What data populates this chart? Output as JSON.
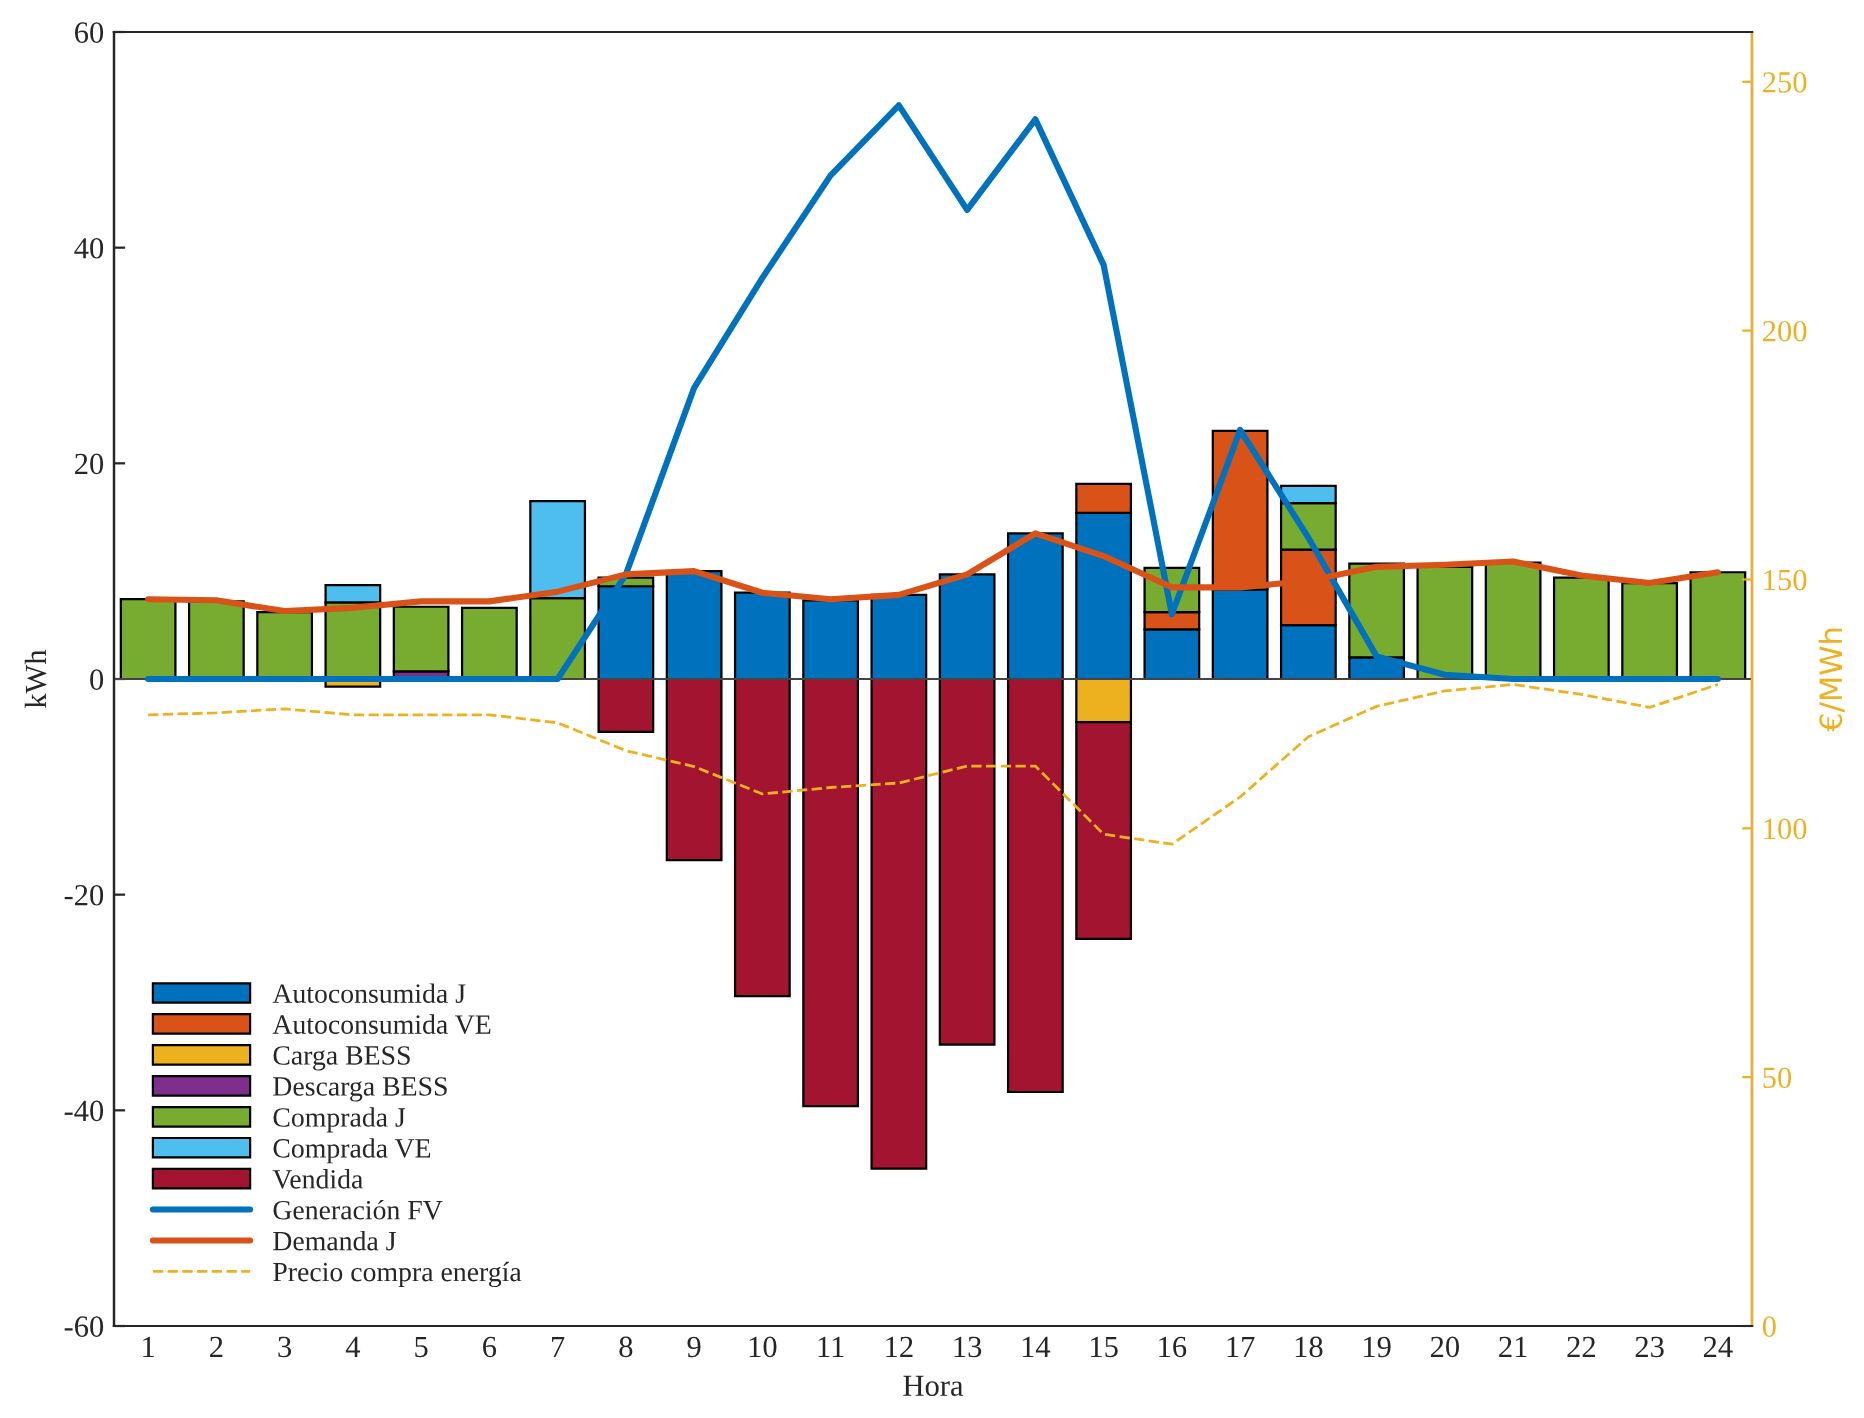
{
  "chart_data": {
    "type": "bar",
    "stacked": true,
    "xlabel": "Hora",
    "ylabel": "kWh",
    "y2label": "€/MWh",
    "x": [
      1,
      2,
      3,
      4,
      5,
      6,
      7,
      8,
      9,
      10,
      11,
      12,
      13,
      14,
      15,
      16,
      17,
      18,
      19,
      20,
      21,
      22,
      23,
      24
    ],
    "xlim": [
      0.5,
      24.5
    ],
    "xticks": [
      1,
      2,
      3,
      4,
      5,
      6,
      7,
      8,
      9,
      10,
      11,
      12,
      13,
      14,
      15,
      16,
      17,
      18,
      19,
      20,
      21,
      22,
      23,
      24
    ],
    "ylim": [
      -60,
      60
    ],
    "yticks": [
      -60,
      -40,
      -20,
      0,
      20,
      40,
      60
    ],
    "y2lim": [
      0,
      260
    ],
    "y2ticks": [
      0,
      50,
      100,
      150,
      200,
      250
    ],
    "legend": "bottom left",
    "grid": false,
    "ref_lines": [
      {
        "axis": "y",
        "value": 0,
        "color": "#444444"
      }
    ],
    "series": [
      {
        "name": "Autoconsumida J",
        "color": "#0072bd",
        "values": [
          0,
          0,
          0,
          0,
          0,
          0,
          0,
          8.6,
          10.0,
          8.0,
          7.3,
          7.8,
          9.7,
          13.5,
          15.4,
          4.6,
          8.3,
          5.0,
          2.0,
          0,
          0,
          0,
          0,
          0
        ]
      },
      {
        "name": "Autoconsumida VE",
        "color": "#d95319",
        "values": [
          0,
          0,
          0,
          0,
          0,
          0,
          0,
          0,
          0,
          0,
          0,
          0,
          0,
          0,
          2.7,
          1.6,
          14.7,
          7.0,
          0,
          0,
          0,
          0,
          0,
          0
        ]
      },
      {
        "name": "Carga BESS",
        "color": "#edb120",
        "values": [
          0,
          0,
          0,
          -0.7,
          0,
          0,
          0,
          0,
          0,
          0,
          0,
          0,
          0,
          0,
          -4.0,
          0,
          0,
          0,
          0,
          0,
          0,
          0,
          0,
          0
        ]
      },
      {
        "name": "Descarga BESS",
        "color": "#7e2f8e",
        "values": [
          0,
          0,
          0,
          0,
          0.7,
          0,
          0,
          0,
          0,
          0,
          0,
          0,
          0,
          0,
          0,
          0,
          0,
          0,
          0,
          0,
          0,
          0,
          0,
          0
        ]
      },
      {
        "name": "Comprada J",
        "color": "#77ac30",
        "values": [
          7.4,
          7.2,
          6.2,
          7.1,
          6.0,
          6.6,
          7.5,
          0.8,
          0,
          0,
          0,
          0,
          0,
          0,
          0,
          4.1,
          0,
          4.3,
          8.7,
          10.4,
          10.8,
          9.4,
          8.9,
          9.9
        ]
      },
      {
        "name": "Comprada VE",
        "color": "#4dbeee",
        "values": [
          0,
          0,
          0,
          1.6,
          0,
          0,
          9.0,
          0,
          0,
          0,
          0,
          0,
          0,
          0,
          0,
          0,
          0,
          1.6,
          0,
          0,
          0,
          0,
          0,
          0
        ]
      },
      {
        "name": "Vendida",
        "color": "#a2142f",
        "values": [
          0,
          0,
          0,
          0,
          0,
          0,
          0,
          -4.9,
          -16.8,
          -29.4,
          -39.6,
          -45.4,
          -33.9,
          -38.3,
          -20.1,
          0,
          0,
          0,
          0,
          0,
          0,
          0,
          0,
          0
        ]
      },
      {
        "name": "Generación FV",
        "type": "line",
        "color": "#0072bd",
        "line_style": "solid",
        "values": [
          0,
          0,
          0,
          0,
          0,
          0,
          0,
          9.7,
          27.0,
          37.2,
          46.7,
          53.2,
          43.5,
          51.9,
          38.4,
          6.0,
          23.1,
          13.1,
          2.1,
          0.4,
          0,
          0,
          0,
          0
        ]
      },
      {
        "name": "Demanda J",
        "type": "line",
        "color": "#d95319",
        "line_style": "solid",
        "values": [
          7.4,
          7.3,
          6.3,
          6.6,
          7.2,
          7.2,
          8.1,
          9.7,
          10.0,
          8.0,
          7.4,
          7.8,
          9.7,
          13.5,
          11.4,
          8.5,
          8.5,
          9.1,
          10.4,
          10.6,
          10.9,
          9.6,
          8.9,
          9.9
        ]
      },
      {
        "name": "Precio compra energía",
        "type": "line",
        "axis": "y2",
        "color": "#edb120",
        "line_style": "dashed",
        "values": [
          122.8,
          123.2,
          124.0,
          122.8,
          122.8,
          122.8,
          121.2,
          115.6,
          112.4,
          106.9,
          108.2,
          109.1,
          112.5,
          112.5,
          98.8,
          96.8,
          106.3,
          118.4,
          124.5,
          127.6,
          128.9,
          126.9,
          124.3,
          128.9
        ]
      }
    ]
  }
}
